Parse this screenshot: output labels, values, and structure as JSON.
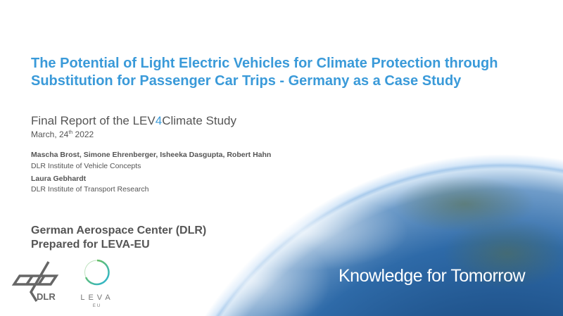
{
  "title": "The Potential of Light Electric Vehicles for Climate Protection through Substitution for Passenger Car Trips - Germany as a Case Study",
  "subtitle": {
    "before": "Final Report of the LEV",
    "accent": "4",
    "after": "Climate Study"
  },
  "date": {
    "month": "March, 24",
    "suffix": "th",
    "year": " 2022"
  },
  "authors_group1": {
    "names": "Mascha Brost, Simone Ehrenberger, Isheeka Dasgupta, Robert Hahn",
    "institute": "DLR Institute of Vehicle Concepts"
  },
  "authors_group2": {
    "names": "Laura Gebhardt",
    "institute": "DLR Institute of Transport Research"
  },
  "org": {
    "line1": "German Aerospace Center (DLR)",
    "line2": "Prepared for LEVA-EU"
  },
  "tagline": "Knowledge for Tomorrow",
  "logos": {
    "dlr": "DLR",
    "leva": "LEVA",
    "leva_sub": "EU"
  },
  "colors": {
    "accent": "#3a9ad9",
    "text": "#555555"
  }
}
